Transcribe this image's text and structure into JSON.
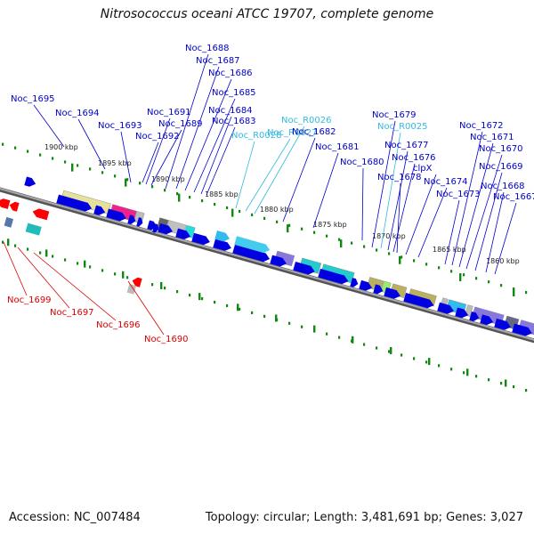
{
  "title": "Nitrosococcus oceani ATCC 19707, complete genome",
  "footer": {
    "accession": "Accession: NC_007484",
    "summary": "Topology: circular; Length: 3,481,691 bp; Genes: 3,027"
  },
  "colors": {
    "forward_label": "#0000cc",
    "rna_label": "#33bbdd",
    "reverse_label": "#dd0000",
    "forward_gene": "#0000e0",
    "reverse_gene": "#ff0000",
    "backbone": "#777777",
    "tick": "#118811"
  },
  "ticks": [
    {
      "label": "1900 kbp"
    },
    {
      "label": "1895 kbp"
    },
    {
      "label": "1890 kbp"
    },
    {
      "label": "1885 kbp"
    },
    {
      "label": "1880 kbp"
    },
    {
      "label": "1875 kbp"
    },
    {
      "label": "1870 kbp"
    },
    {
      "label": "1865 kbp"
    },
    {
      "label": "1860 kbp"
    }
  ],
  "forward_labels": [
    {
      "text": "Noc_1695",
      "kind": "gene"
    },
    {
      "text": "Noc_1694",
      "kind": "gene"
    },
    {
      "text": "Noc_1693",
      "kind": "gene"
    },
    {
      "text": "Noc_1691",
      "kind": "gene"
    },
    {
      "text": "Noc_1689",
      "kind": "gene"
    },
    {
      "text": "Noc_1692",
      "kind": "gene"
    },
    {
      "text": "Noc_1688",
      "kind": "gene"
    },
    {
      "text": "Noc_1687",
      "kind": "gene"
    },
    {
      "text": "Noc_1686",
      "kind": "gene"
    },
    {
      "text": "Noc_1685",
      "kind": "gene"
    },
    {
      "text": "Noc_1684",
      "kind": "gene"
    },
    {
      "text": "Noc_1683",
      "kind": "gene"
    },
    {
      "text": "Noc_R0028",
      "kind": "rna"
    },
    {
      "text": "Noc_R0027",
      "kind": "rna"
    },
    {
      "text": "Noc_R0026",
      "kind": "rna"
    },
    {
      "text": "Noc_1682",
      "kind": "gene"
    },
    {
      "text": "Noc_1681",
      "kind": "gene"
    },
    {
      "text": "Noc_1680",
      "kind": "gene"
    },
    {
      "text": "Noc_1679",
      "kind": "gene"
    },
    {
      "text": "Noc_R0025",
      "kind": "rna"
    },
    {
      "text": "Noc_1677",
      "kind": "gene"
    },
    {
      "text": "Noc_1676",
      "kind": "gene"
    },
    {
      "text": "Noc_1678",
      "kind": "gene"
    },
    {
      "text": "clpX",
      "kind": "gene"
    },
    {
      "text": "Noc_1674",
      "kind": "gene"
    },
    {
      "text": "Noc_1673",
      "kind": "gene"
    },
    {
      "text": "Noc_1672",
      "kind": "gene"
    },
    {
      "text": "Noc_1671",
      "kind": "gene"
    },
    {
      "text": "Noc_1670",
      "kind": "gene"
    },
    {
      "text": "Noc_1669",
      "kind": "gene"
    },
    {
      "text": "Noc_1668",
      "kind": "gene"
    },
    {
      "text": "Noc_1667",
      "kind": "gene"
    }
  ],
  "reverse_labels": [
    {
      "text": "Noc_1699"
    },
    {
      "text": "Noc_1697"
    },
    {
      "text": "Noc_1696"
    },
    {
      "text": "Noc_1690"
    }
  ]
}
